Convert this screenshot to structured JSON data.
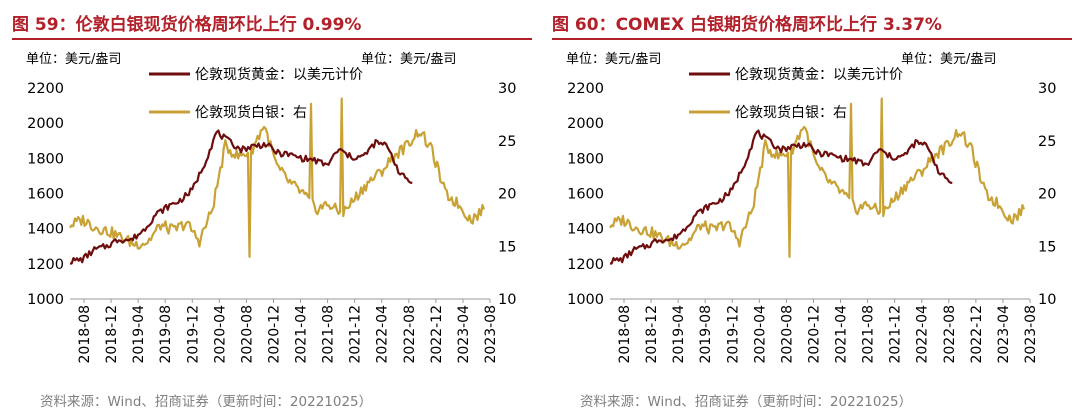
{
  "charts": [
    {
      "title": "图 59：伦敦白银现货价格周环比上行 0.99%",
      "source": "资料来源：Wind、招商证券（更新时间：20221025）"
    },
    {
      "title": "图 60：COMEX 白银期货价格周环比上行 3.37%",
      "source": "资料来源：Wind、招商证券（更新时间：20221025）"
    }
  ],
  "colors": {
    "title": "#b2202a",
    "gold": "#6e0d0d",
    "silver": "#c8a235",
    "axis": "#9a9a9a"
  },
  "chart_data": [
    {
      "type": "line",
      "title": "图 59：伦敦白银现货价格周环比上行 0.99%",
      "left_unit": "单位：美元/盎司",
      "right_unit": "单位：美元/盎司",
      "y_left": {
        "min": 1000,
        "max": 2200,
        "ticks": [
          "1000",
          "1200",
          "1400",
          "1600",
          "1800",
          "2000",
          "2200"
        ]
      },
      "y_right": {
        "min": 10,
        "max": 30,
        "ticks": [
          "10",
          "15",
          "20",
          "25",
          "30"
        ]
      },
      "x_labels": [
        "2018-08",
        "2018-12",
        "2019-04",
        "2019-08",
        "2019-12",
        "2020-04",
        "2020-08",
        "2020-12",
        "2021-04",
        "2021-08",
        "2021-12",
        "2022-04",
        "2022-08",
        "2022-12",
        "2023-04",
        "2023-08"
      ],
      "series": [
        {
          "name": "伦敦现货黄金：以美元计价",
          "axis": "left",
          "values": [
            1215,
            1225,
            1280,
            1300,
            1340,
            1335,
            1390,
            1480,
            1525,
            1560,
            1620,
            1770,
            1950,
            1895,
            1850,
            1870,
            1880,
            1830,
            1820,
            1800,
            1790,
            1760,
            1850,
            1805,
            1810,
            1890,
            1870,
            1710,
            1660
          ]
        },
        {
          "name": "伦敦现货白银：右",
          "axis": "right",
          "values": [
            17.0,
            17.5,
            16.8,
            16.4,
            15.8,
            15.2,
            15.4,
            17.0,
            16.5,
            17.2,
            15.5,
            18.5,
            24.5,
            23.5,
            24.0,
            26.5,
            22.5,
            21.0,
            20.0,
            18.5,
            19.0,
            18.0,
            19.5,
            21.0,
            22.0,
            23.5,
            24.5,
            26.0,
            24.0,
            20.0,
            19.0,
            17.5,
            18.5
          ]
        }
      ]
    },
    {
      "type": "line",
      "title": "图 60：COMEX 白银期货价格周环比上行 3.37%",
      "left_unit": "单位：美元/盎司",
      "right_unit": "单位：美元/盎司",
      "y_left": {
        "min": 1000,
        "max": 2200,
        "ticks": [
          "1000",
          "1200",
          "1400",
          "1600",
          "1800",
          "2000",
          "2200"
        ]
      },
      "y_right": {
        "min": 10,
        "max": 30,
        "ticks": [
          "10",
          "15",
          "20",
          "25",
          "30"
        ]
      },
      "x_labels": [
        "2018-08",
        "2018-12",
        "2019-04",
        "2019-08",
        "2019-12",
        "2020-04",
        "2020-08",
        "2020-12",
        "2021-04",
        "2021-08",
        "2021-12",
        "2022-04",
        "2022-08",
        "2022-12",
        "2023-04",
        "2023-08"
      ],
      "series": [
        {
          "name": "伦敦现货黄金：以美元计价",
          "axis": "left",
          "values": [
            1215,
            1225,
            1280,
            1300,
            1340,
            1335,
            1390,
            1480,
            1525,
            1560,
            1620,
            1770,
            1950,
            1895,
            1850,
            1870,
            1880,
            1830,
            1820,
            1800,
            1790,
            1760,
            1850,
            1805,
            1810,
            1890,
            1870,
            1710,
            1660
          ]
        },
        {
          "name": "伦敦现货白银：右",
          "axis": "right",
          "values": [
            17.0,
            17.5,
            16.8,
            16.4,
            15.8,
            15.2,
            15.4,
            17.0,
            16.5,
            17.2,
            15.5,
            18.5,
            24.5,
            23.5,
            24.0,
            26.5,
            22.5,
            21.0,
            20.0,
            18.5,
            19.0,
            18.0,
            19.5,
            21.0,
            22.0,
            23.5,
            24.5,
            26.0,
            24.0,
            20.0,
            19.0,
            17.5,
            18.5
          ]
        }
      ]
    }
  ]
}
